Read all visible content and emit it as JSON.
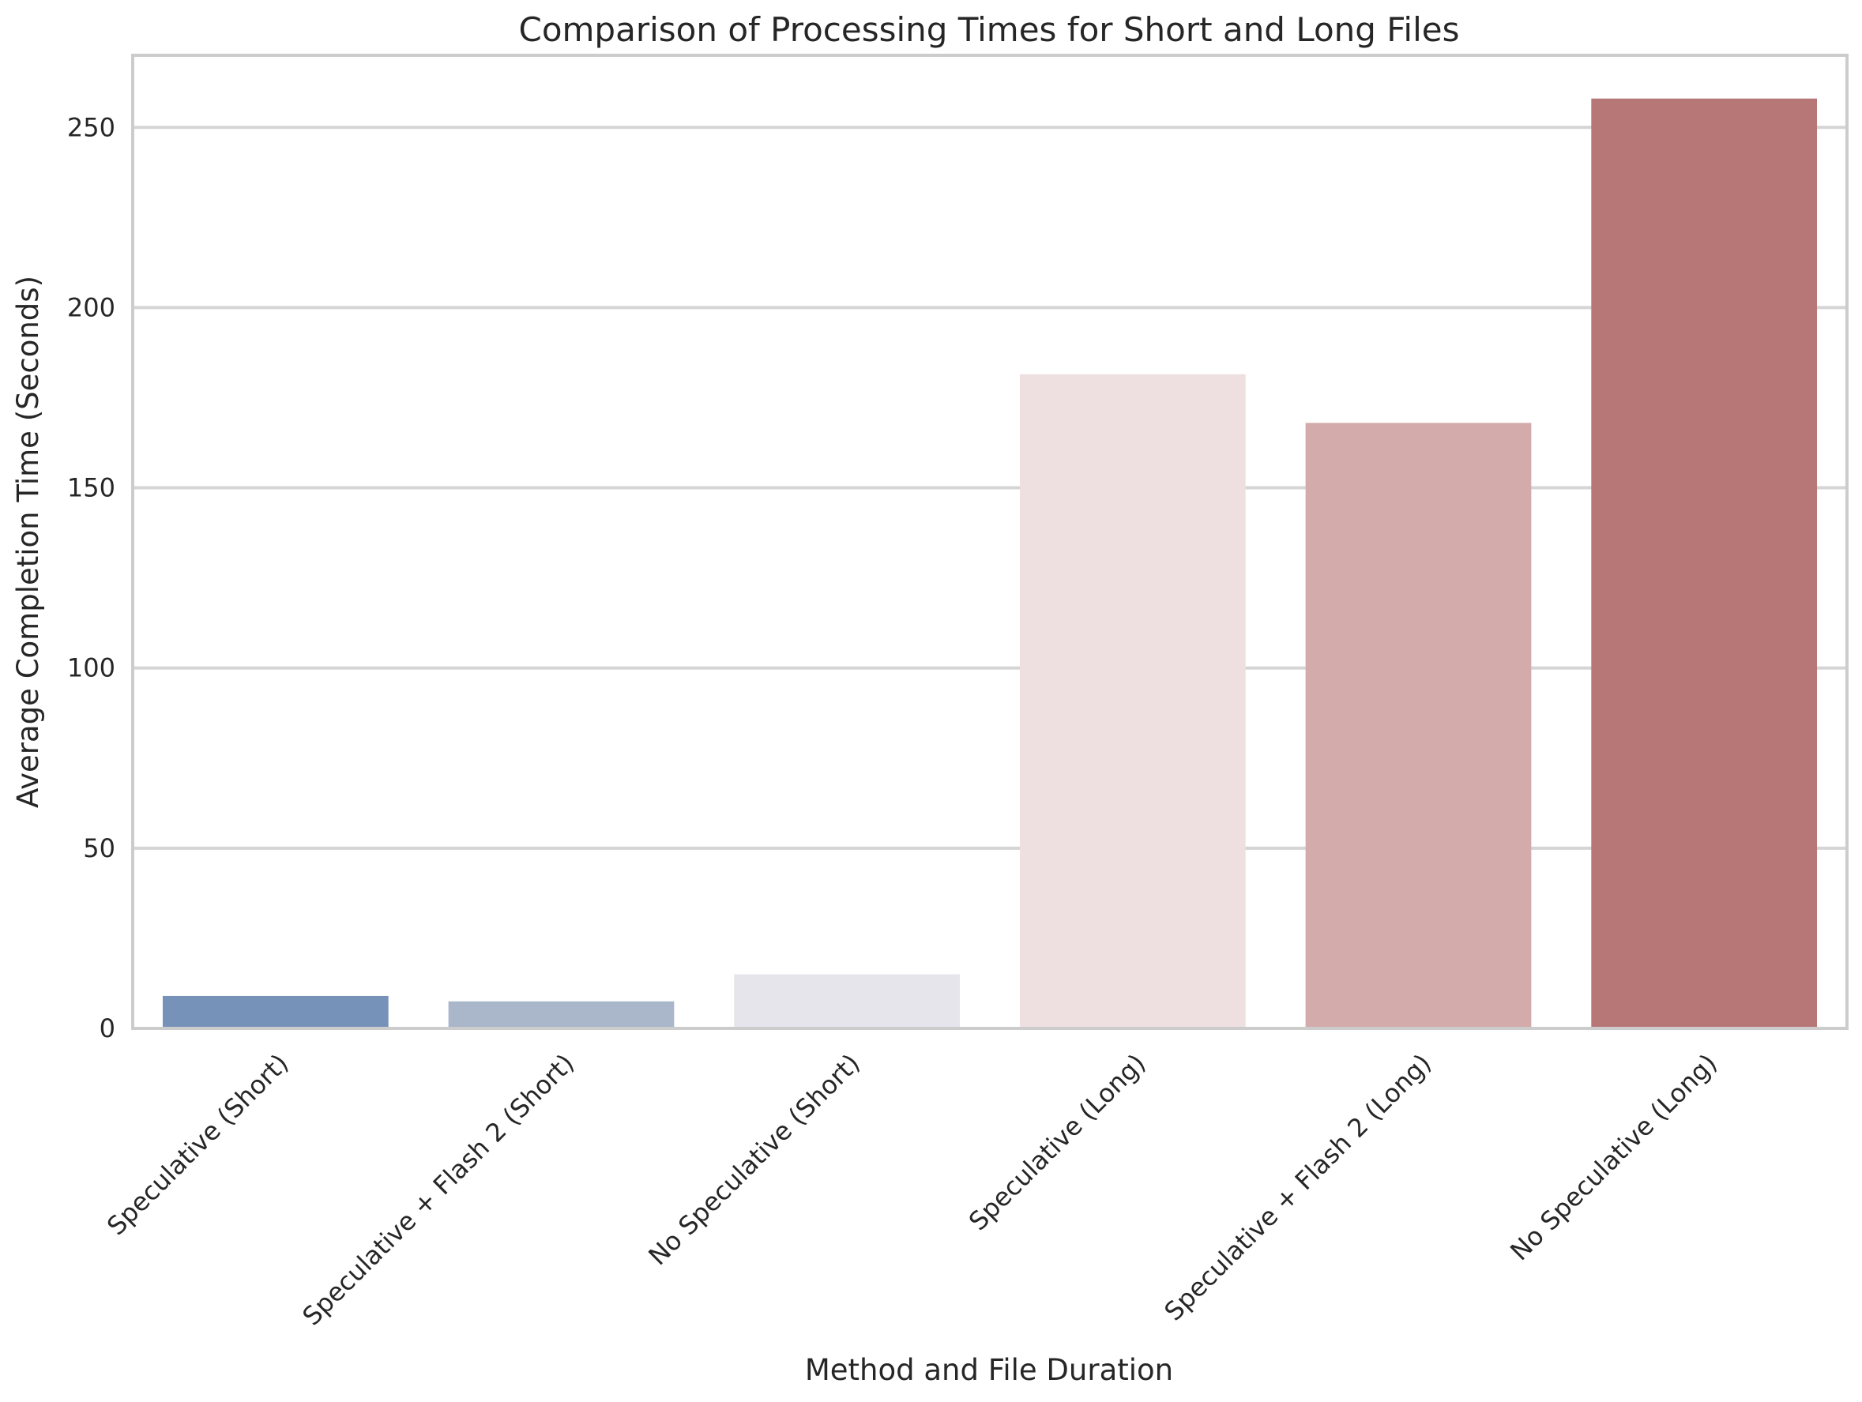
{
  "chart_data": {
    "type": "bar",
    "title": "Comparison of Processing Times for Short and Long Files",
    "xlabel": "Method and File Duration",
    "ylabel": "Average Completion Time (Seconds)",
    "categories": [
      "Speculative (Short)",
      "Speculative + Flash 2 (Short)",
      "No Speculative (Short)",
      "Speculative (Long)",
      "Speculative + Flash 2 (Long)",
      "No Speculative (Long)"
    ],
    "values": [
      9,
      7.5,
      15,
      181.5,
      168,
      258
    ],
    "colors": [
      "#7792b9",
      "#aab7cb",
      "#e5e5eb",
      "#eee0e0",
      "#d2abaa",
      "#b67776"
    ],
    "ylim": [
      0,
      270
    ],
    "yticks": [
      0,
      50,
      100,
      150,
      200,
      250
    ],
    "grid": true,
    "legend": "none"
  }
}
